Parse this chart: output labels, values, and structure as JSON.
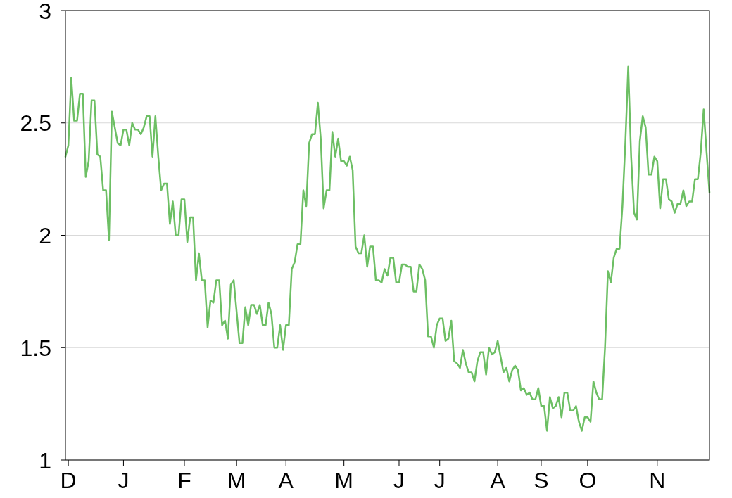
{
  "chart_data": {
    "type": "line",
    "grid": "y",
    "marker": "none",
    "line_style": "solid",
    "ylim": [
      1,
      3
    ],
    "yticks": [
      1,
      1.5,
      2,
      2.5,
      3
    ],
    "categories": [
      null,
      "D",
      null,
      null,
      null,
      null,
      null,
      null,
      null,
      null,
      null,
      null,
      null,
      null,
      null,
      null,
      null,
      null,
      null,
      null,
      "J",
      null,
      null,
      null,
      null,
      null,
      null,
      null,
      null,
      null,
      null,
      null,
      null,
      null,
      null,
      null,
      null,
      null,
      null,
      null,
      null,
      "F",
      null,
      null,
      null,
      null,
      null,
      null,
      null,
      null,
      null,
      null,
      null,
      null,
      null,
      null,
      null,
      null,
      null,
      "M",
      null,
      null,
      null,
      null,
      null,
      null,
      null,
      null,
      null,
      null,
      null,
      null,
      null,
      null,
      null,
      null,
      "A",
      null,
      null,
      null,
      null,
      null,
      null,
      null,
      null,
      null,
      null,
      null,
      null,
      null,
      null,
      null,
      null,
      null,
      null,
      null,
      "M",
      null,
      null,
      null,
      null,
      null,
      null,
      null,
      null,
      null,
      null,
      null,
      null,
      null,
      null,
      null,
      null,
      null,
      null,
      "J",
      null,
      null,
      null,
      null,
      null,
      null,
      null,
      null,
      null,
      null,
      null,
      null,
      null,
      "J",
      null,
      null,
      null,
      null,
      null,
      null,
      null,
      null,
      null,
      null,
      null,
      null,
      null,
      null,
      null,
      null,
      null,
      null,
      null,
      "A",
      null,
      null,
      null,
      null,
      null,
      null,
      null,
      null,
      null,
      null,
      null,
      null,
      null,
      null,
      "S",
      null,
      null,
      null,
      null,
      null,
      null,
      null,
      null,
      null,
      null,
      null,
      null,
      null,
      null,
      null,
      "O",
      null,
      null,
      null,
      null,
      null,
      null,
      null,
      null,
      null,
      null,
      null,
      null,
      null,
      null,
      null,
      null,
      null,
      null,
      null,
      null,
      null,
      null,
      null,
      "N",
      null,
      null,
      null,
      null,
      null,
      null,
      null,
      null,
      null,
      null,
      null,
      null,
      null,
      null,
      null,
      null,
      null,
      null
    ],
    "series": [
      {
        "color": "#6dbf64",
        "values": [
          2.35,
          2.4,
          2.7,
          2.51,
          2.51,
          2.63,
          2.63,
          2.26,
          2.33,
          2.6,
          2.6,
          2.36,
          2.35,
          2.2,
          2.2,
          1.98,
          2.55,
          2.48,
          2.41,
          2.4,
          2.47,
          2.47,
          2.4,
          2.5,
          2.47,
          2.47,
          2.45,
          2.48,
          2.53,
          2.53,
          2.35,
          2.53,
          2.35,
          2.2,
          2.23,
          2.23,
          2.05,
          2.15,
          2.0,
          2.0,
          2.16,
          2.16,
          1.97,
          2.08,
          2.08,
          1.8,
          1.92,
          1.8,
          1.8,
          1.59,
          1.71,
          1.7,
          1.8,
          1.8,
          1.6,
          1.62,
          1.54,
          1.78,
          1.8,
          1.66,
          1.52,
          1.52,
          1.68,
          1.6,
          1.69,
          1.69,
          1.65,
          1.69,
          1.6,
          1.6,
          1.7,
          1.65,
          1.5,
          1.5,
          1.6,
          1.49,
          1.6,
          1.6,
          1.85,
          1.88,
          1.96,
          1.96,
          2.2,
          2.13,
          2.41,
          2.45,
          2.45,
          2.59,
          2.43,
          2.12,
          2.2,
          2.2,
          2.46,
          2.35,
          2.43,
          2.33,
          2.33,
          2.31,
          2.35,
          2.29,
          1.95,
          1.92,
          1.92,
          2.0,
          1.86,
          1.95,
          1.95,
          1.8,
          1.8,
          1.79,
          1.85,
          1.82,
          1.9,
          1.9,
          1.79,
          1.79,
          1.87,
          1.87,
          1.86,
          1.86,
          1.75,
          1.75,
          1.87,
          1.85,
          1.8,
          1.55,
          1.55,
          1.5,
          1.6,
          1.63,
          1.63,
          1.53,
          1.54,
          1.62,
          1.44,
          1.43,
          1.41,
          1.49,
          1.43,
          1.39,
          1.39,
          1.35,
          1.44,
          1.48,
          1.48,
          1.38,
          1.5,
          1.47,
          1.48,
          1.53,
          1.46,
          1.39,
          1.41,
          1.35,
          1.4,
          1.42,
          1.4,
          1.31,
          1.32,
          1.29,
          1.3,
          1.27,
          1.27,
          1.32,
          1.24,
          1.24,
          1.13,
          1.28,
          1.23,
          1.24,
          1.28,
          1.19,
          1.3,
          1.3,
          1.22,
          1.22,
          1.24,
          1.17,
          1.13,
          1.19,
          1.19,
          1.17,
          1.35,
          1.3,
          1.27,
          1.27,
          1.5,
          1.84,
          1.79,
          1.9,
          1.94,
          1.94,
          2.13,
          2.41,
          2.75,
          2.35,
          2.1,
          2.07,
          2.42,
          2.53,
          2.48,
          2.27,
          2.27,
          2.35,
          2.33,
          2.12,
          2.25,
          2.25,
          2.16,
          2.15,
          2.1,
          2.14,
          2.14,
          2.2,
          2.13,
          2.15,
          2.15,
          2.25,
          2.25,
          2.37,
          2.56,
          2.37,
          2.19
        ]
      }
    ]
  }
}
